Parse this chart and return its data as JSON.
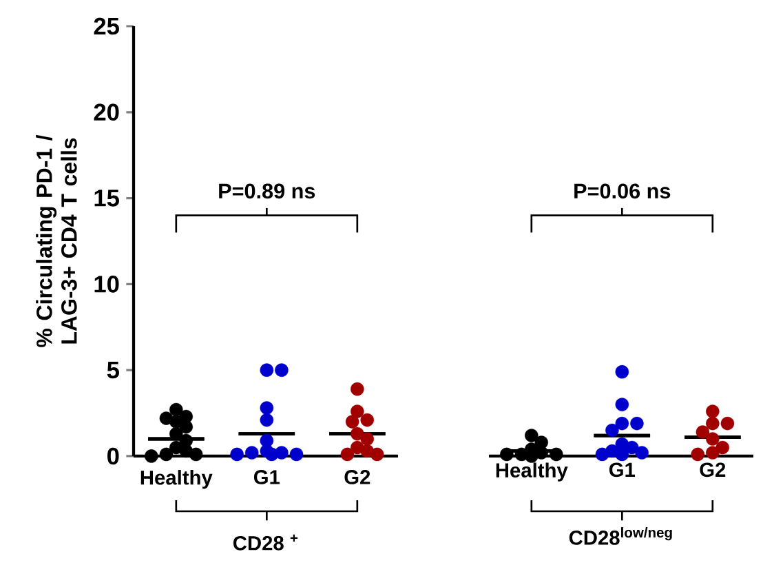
{
  "chart_data": [
    {
      "type": "scatter",
      "categories": [
        "Healthy",
        "G1",
        "G2"
      ],
      "xlabel": "CD28 $^{+}$",
      "ylabel": "% Circulating PD-1 / LAG-3+ CD4 T cells",
      "ylim": [
        0,
        25
      ],
      "yticks": [
        0,
        5,
        10,
        15,
        20,
        25
      ],
      "annotations": [
        "P=0.89 ns"
      ],
      "marker": "circle",
      "series": [
        {
          "x": [
            "Healthy",
            "Healthy",
            "Healthy",
            "Healthy",
            "Healthy",
            "Healthy",
            "Healthy",
            "Healthy",
            "Healthy",
            "Healthy",
            "Healthy",
            "Healthy"
          ],
          "values": [
            2.7,
            2.2,
            2.3,
            2.0,
            1.7,
            1.3,
            0.9,
            0.5,
            0.3,
            0.1,
            0.1,
            0.0
          ],
          "color": "#000000"
        },
        {
          "x": [
            "G1",
            "G1",
            "G1",
            "G1",
            "G1",
            "G1",
            "G1",
            "G1",
            "G1",
            "G1",
            "G1"
          ],
          "values": [
            5.0,
            5.0,
            2.8,
            2.1,
            0.9,
            0.3,
            0.2,
            0.1,
            0.1,
            0.1,
            0.2
          ],
          "color": "#0000cd"
        },
        {
          "x": [
            "G2",
            "G2",
            "G2",
            "G2",
            "G2",
            "G2",
            "G2",
            "G2",
            "G2",
            "G2"
          ],
          "values": [
            3.9,
            2.6,
            2.1,
            2.0,
            1.3,
            1.0,
            0.5,
            0.3,
            0.1,
            0.1
          ],
          "color": "#a00000"
        },
        {
          "type": "box",
          "color": "#000000",
          "boxes": [
            {
              "low": 1.0,
              "q1": 1.0,
              "median": 1.0,
              "q3": 1.0,
              "high": 1.0
            },
            {
              "low": 1.3,
              "q1": 1.3,
              "median": 1.3,
              "q3": 1.3,
              "high": 1.3
            },
            {
              "low": 1.3,
              "q1": 1.3,
              "median": 1.3,
              "q3": 1.3,
              "high": 1.3
            }
          ]
        }
      ]
    },
    {
      "type": "scatter",
      "categories": [
        "Healthy",
        "G1",
        "G2"
      ],
      "xlabel": "CD28$^{low/neg}$",
      "ylim": [
        0,
        25
      ],
      "tick_labels": "x",
      "annotations": [
        "P=0.06 ns"
      ],
      "marker": "circle",
      "series": [
        {
          "x": [
            "Healthy",
            "Healthy",
            "Healthy",
            "Healthy",
            "Healthy",
            "Healthy",
            "Healthy",
            "Healthy"
          ],
          "values": [
            1.2,
            0.8,
            0.4,
            0.2,
            0.1,
            0.1,
            0.1,
            0.0
          ],
          "color": "#000000"
        },
        {
          "x": [
            "G1",
            "G1",
            "G1",
            "G1",
            "G1",
            "G1",
            "G1",
            "G1",
            "G1",
            "G1",
            "G1"
          ],
          "values": [
            4.9,
            3.0,
            1.9,
            1.9,
            1.5,
            0.7,
            0.5,
            0.3,
            0.2,
            0.1,
            0.1
          ],
          "color": "#0000cd"
        },
        {
          "x": [
            "G2",
            "G2",
            "G2",
            "G2",
            "G2",
            "G2",
            "G2",
            "G2"
          ],
          "values": [
            2.6,
            1.9,
            1.9,
            1.4,
            1.0,
            0.5,
            0.2,
            0.1
          ],
          "color": "#a00000"
        },
        {
          "type": "box",
          "color": "#000000",
          "boxes": [
            {
              "low": 0.3,
              "q1": 0.3,
              "median": 0.3,
              "q3": 0.3,
              "high": 0.3
            },
            {
              "low": 1.2,
              "q1": 1.2,
              "median": 1.2,
              "q3": 1.2,
              "high": 1.2
            },
            {
              "low": 1.1,
              "q1": 1.1,
              "median": 1.1,
              "q3": 1.1,
              "high": 1.1
            }
          ]
        }
      ]
    }
  ]
}
